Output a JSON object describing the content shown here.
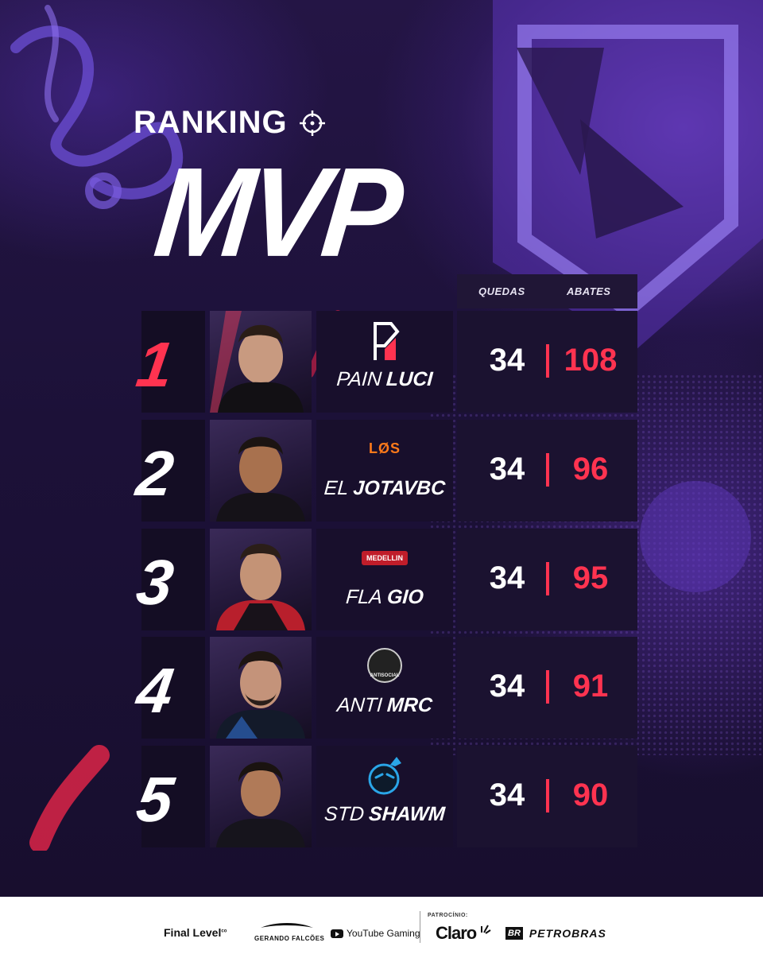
{
  "header": {
    "ranking_label": "RANKING",
    "title": "MVP",
    "crosshair_icon": "crosshair-icon"
  },
  "columns": {
    "quedas": "QUEDAS",
    "abates": "ABATES"
  },
  "rows": [
    {
      "rank": "1",
      "team_tag": "PAIN",
      "player": "LUCI",
      "quedas": "34",
      "abates": "108",
      "logo": "pain-logo"
    },
    {
      "rank": "2",
      "team_tag": "EL",
      "player": "JOTAVBC",
      "quedas": "34",
      "abates": "96",
      "logo": "los-logo"
    },
    {
      "rank": "3",
      "team_tag": "FLA",
      "player": "GIO",
      "quedas": "34",
      "abates": "95",
      "logo": "medellin-logo"
    },
    {
      "rank": "4",
      "team_tag": "ANTI",
      "player": "MRC",
      "quedas": "34",
      "abates": "91",
      "logo": "antisocial-logo"
    },
    {
      "rank": "5",
      "team_tag": "STD",
      "player": "SHAWM",
      "quedas": "34",
      "abates": "90",
      "logo": "std-logo"
    }
  ],
  "logo_text": {
    "los": "LØS",
    "medellin": "MEDELLIN",
    "antisocial": "ANTISOCIAL"
  },
  "footer": {
    "final_level": "Final Level",
    "final_level_sup": "co",
    "gerando_falcoes": "GERANDO FALCÕES",
    "youtube_gaming": "YouTube Gaming",
    "patrocinio": "PATROCÍNIO:",
    "claro": "Claro",
    "br": "BR",
    "petrobras": "PETROBRAS"
  },
  "colors": {
    "accent_red": "#ff3350",
    "background": "#1a1030",
    "panel": "#1b1230"
  }
}
